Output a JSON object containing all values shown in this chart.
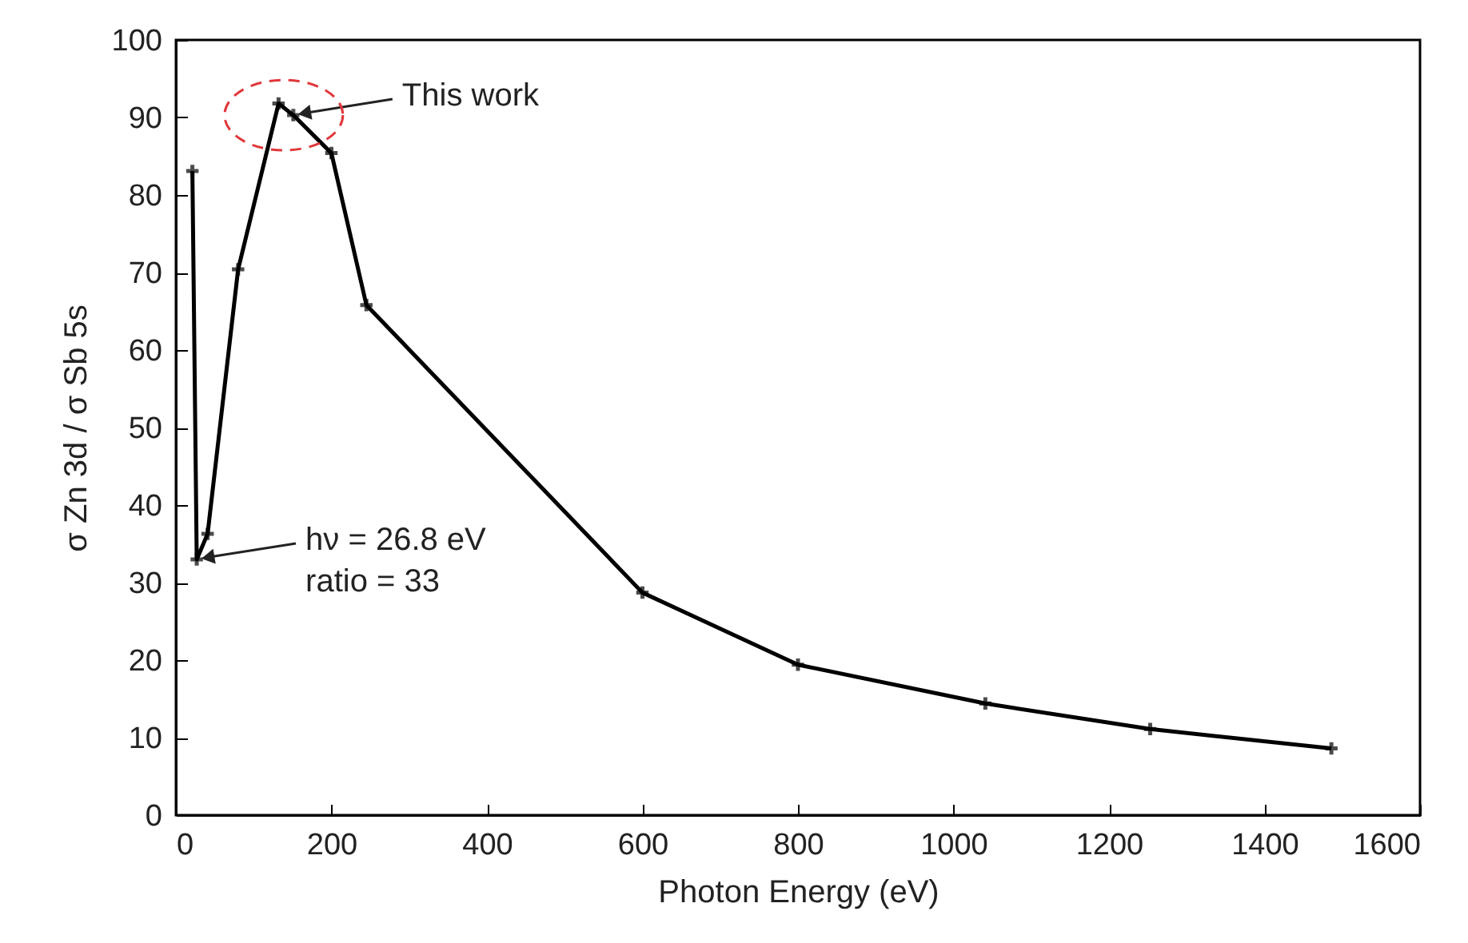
{
  "chart_data": {
    "type": "line",
    "xlabel": "Photon Energy (eV)",
    "ylabel": "σ Zn 3d / σ Sb 5s",
    "x": [
      21.2,
      26.8,
      40.8,
      80,
      132,
      151,
      200,
      245,
      600,
      800,
      1041,
      1253,
      1486
    ],
    "series": [
      {
        "color": "#000000",
        "values": [
          83.1,
          33,
          36.3,
          70.4,
          91.8,
          90.3,
          85.4,
          65.8,
          28.7,
          19.4,
          14.4,
          11.1,
          8.6
        ]
      }
    ],
    "xlim": [
      0,
      1600
    ],
    "xticks": [
      0,
      200,
      400,
      600,
      800,
      1000,
      1200,
      1400,
      1600
    ],
    "ylim": [
      0,
      100
    ],
    "yticks": [
      0,
      10,
      20,
      30,
      40,
      50,
      60,
      70,
      80,
      90,
      100
    ],
    "marker": "cross",
    "line_style": "solid",
    "grid": false,
    "annotations": [
      {
        "text": "This work",
        "x": 151,
        "y": 90.3
      },
      {
        "text": "hν = 26.8 eV\nratio = 33",
        "x": 26.8,
        "y": 33
      }
    ]
  }
}
